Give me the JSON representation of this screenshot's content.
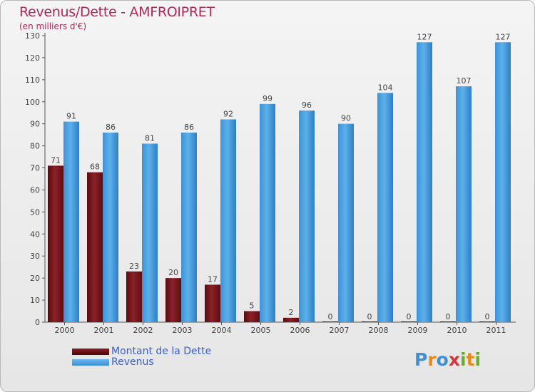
{
  "header": {
    "title": "Revenus/Dette - AMFROIPRET",
    "subtitle": "(en milliers d'€)"
  },
  "logo": {
    "text": "Proxiti"
  },
  "colors": {
    "dette": "#7a1a1f",
    "revenus": "#4ea3e0",
    "title": "#b0285a",
    "legend_text": "#3a5fd0"
  },
  "legend": {
    "position": "bottom-left",
    "items": [
      {
        "label": "Montant de la Dette",
        "color": "#6a0f14"
      },
      {
        "label": "Revenus",
        "color": "#4ea3e0"
      }
    ]
  },
  "chart_data": {
    "type": "bar",
    "title": "Revenus/Dette - AMFROIPRET",
    "subtitle": "(en milliers d'€)",
    "categories": [
      "2000",
      "2001",
      "2002",
      "2003",
      "2004",
      "2005",
      "2006",
      "2007",
      "2008",
      "2009",
      "2010",
      "2011"
    ],
    "series": [
      {
        "name": "Montant de la Dette",
        "values": [
          71,
          68,
          23,
          20,
          17,
          5,
          2,
          0,
          0,
          0,
          0,
          0
        ]
      },
      {
        "name": "Revenus",
        "values": [
          91,
          86,
          81,
          86,
          92,
          99,
          96,
          90,
          104,
          127,
          107,
          127
        ]
      }
    ],
    "yticks": [
      0,
      10,
      20,
      30,
      40,
      50,
      60,
      70,
      80,
      90,
      100,
      110,
      120,
      130
    ],
    "ylim": [
      0,
      130
    ],
    "grid": false,
    "legend": "bottom-left"
  }
}
